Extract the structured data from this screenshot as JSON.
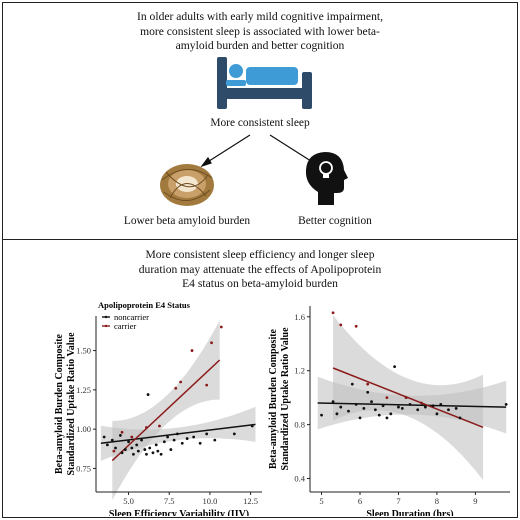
{
  "top_panel": {
    "headline_1": "In older adults with early mild cognitive impairment,",
    "headline_2": "more consistent sleep is associated with lower beta-",
    "headline_3": "amyloid burden and better cognition",
    "center_label": "More consistent sleep",
    "left_label": "Lower beta amyloid burden",
    "right_label": "Better cognition",
    "icons": [
      "bed-icon",
      "nest-icon",
      "head-lightbulb-icon"
    ],
    "colors": {
      "bed_blue": "#3f9bd5",
      "bed_frame": "#2f4b6a"
    }
  },
  "bottom_panel": {
    "headline_1": "More consistent sleep efficiency and longer sleep",
    "headline_2": "duration may attenuate the effects of Apolipoprotein",
    "headline_3": "E4 status on beta-amyloid burden"
  },
  "chart_data": [
    {
      "type": "scatter",
      "xlabel": "Sleep Efficiency Variability (IIV)",
      "ylabel_1": "Beta-amyloid Burden Composite",
      "ylabel_2": "Standardized Uptake Ratio Value",
      "xlim": [
        3,
        13.2
      ],
      "ylim": [
        0.6,
        1.72
      ],
      "xticks": [
        5.0,
        7.5,
        10.0,
        12.5
      ],
      "xtick_labels": [
        "5.0",
        "7.5",
        "10.0",
        "12.5"
      ],
      "yticks": [
        0.75,
        1.0,
        1.25,
        1.5
      ],
      "ytick_labels": [
        "0.75",
        "1.00",
        "1.25",
        "1.50"
      ],
      "legend_title": "Apolipoprotein E4 Status",
      "legend_position": "top-left",
      "series": [
        {
          "name": "noncarrier",
          "color": "#111111",
          "fit": [
            [
              3.3,
              0.91
            ],
            [
              12.8,
              1.03
            ]
          ],
          "band_width": 0.04,
          "points": [
            [
              3.5,
              0.95
            ],
            [
              3.7,
              0.9
            ],
            [
              4.0,
              0.93
            ],
            [
              4.2,
              0.88
            ],
            [
              4.5,
              0.96
            ],
            [
              4.6,
              0.85
            ],
            [
              4.8,
              0.87
            ],
            [
              5.0,
              0.92
            ],
            [
              5.2,
              0.88
            ],
            [
              5.3,
              0.84
            ],
            [
              5.5,
              0.9
            ],
            [
              5.6,
              0.86
            ],
            [
              5.8,
              0.93
            ],
            [
              6.0,
              0.87
            ],
            [
              6.1,
              0.84
            ],
            [
              6.2,
              1.22
            ],
            [
              6.3,
              0.88
            ],
            [
              6.5,
              0.85
            ],
            [
              6.7,
              0.9
            ],
            [
              6.8,
              0.86
            ],
            [
              7.0,
              0.84
            ],
            [
              7.2,
              0.92
            ],
            [
              7.4,
              0.95
            ],
            [
              7.6,
              0.87
            ],
            [
              7.8,
              0.93
            ],
            [
              8.0,
              0.97
            ],
            [
              8.3,
              0.91
            ],
            [
              8.6,
              0.94
            ],
            [
              9.0,
              0.95
            ],
            [
              9.4,
              0.91
            ],
            [
              9.8,
              0.97
            ],
            [
              10.3,
              0.93
            ],
            [
              11.5,
              0.97
            ],
            [
              12.6,
              1.02
            ]
          ]
        },
        {
          "name": "carrier",
          "color": "#8b1a1a",
          "fit": [
            [
              4.0,
              0.8
            ],
            [
              10.6,
              1.44
            ]
          ],
          "band_width": 0.09,
          "points": [
            [
              4.1,
              0.86
            ],
            [
              4.6,
              0.98
            ],
            [
              5.2,
              0.95
            ],
            [
              6.1,
              1.01
            ],
            [
              6.9,
              1.02
            ],
            [
              7.9,
              1.26
            ],
            [
              8.2,
              1.3
            ],
            [
              8.9,
              1.5
            ],
            [
              9.8,
              1.28
            ],
            [
              10.1,
              1.55
            ],
            [
              10.7,
              1.65
            ]
          ]
        }
      ]
    },
    {
      "type": "scatter",
      "xlabel": "Sleep Duration (hrs)",
      "ylabel_1": "Beta-amyloid Burden Composite",
      "ylabel_2": "Standardized Uptake Ratio Value",
      "xlim": [
        4.7,
        9.9
      ],
      "ylim": [
        0.3,
        1.68
      ],
      "xticks": [
        5,
        6,
        7,
        8,
        9
      ],
      "xtick_labels": [
        "5",
        "6",
        "7",
        "8",
        "9"
      ],
      "yticks": [
        0.4,
        0.8,
        1.2,
        1.6
      ],
      "ytick_labels": [
        "0.4",
        "0.8",
        "1.2",
        "1.6"
      ],
      "series": [
        {
          "name": "noncarrier",
          "color": "#111111",
          "fit": [
            [
              4.9,
              0.96
            ],
            [
              9.8,
              0.93
            ]
          ],
          "band_width": 0.07,
          "points": [
            [
              5.0,
              0.87
            ],
            [
              5.3,
              0.97
            ],
            [
              5.4,
              0.88
            ],
            [
              5.5,
              0.93
            ],
            [
              5.7,
              0.9
            ],
            [
              5.8,
              1.1
            ],
            [
              5.9,
              0.95
            ],
            [
              6.0,
              0.85
            ],
            [
              6.1,
              0.92
            ],
            [
              6.2,
              1.04
            ],
            [
              6.3,
              0.97
            ],
            [
              6.4,
              0.91
            ],
            [
              6.5,
              0.87
            ],
            [
              6.6,
              0.94
            ],
            [
              6.7,
              0.85
            ],
            [
              6.8,
              0.88
            ],
            [
              6.9,
              1.23
            ],
            [
              7.0,
              0.93
            ],
            [
              7.1,
              0.92
            ],
            [
              7.2,
              1.0
            ],
            [
              7.3,
              0.95
            ],
            [
              7.5,
              0.91
            ],
            [
              7.7,
              0.93
            ],
            [
              7.9,
              0.94
            ],
            [
              8.0,
              0.88
            ],
            [
              8.1,
              0.95
            ],
            [
              8.3,
              0.91
            ],
            [
              8.5,
              0.92
            ],
            [
              8.6,
              0.85
            ],
            [
              9.8,
              0.95
            ]
          ]
        },
        {
          "name": "carrier",
          "color": "#8b1a1a",
          "fit": [
            [
              5.3,
              1.22
            ],
            [
              9.2,
              0.78
            ]
          ],
          "band_width": 0.14,
          "points": [
            [
              5.3,
              1.63
            ],
            [
              5.5,
              1.54
            ],
            [
              5.9,
              1.53
            ],
            [
              6.2,
              1.1
            ],
            [
              6.7,
              1.0
            ],
            [
              7.2,
              1.0
            ],
            [
              7.6,
              0.96
            ]
          ]
        }
      ]
    }
  ]
}
